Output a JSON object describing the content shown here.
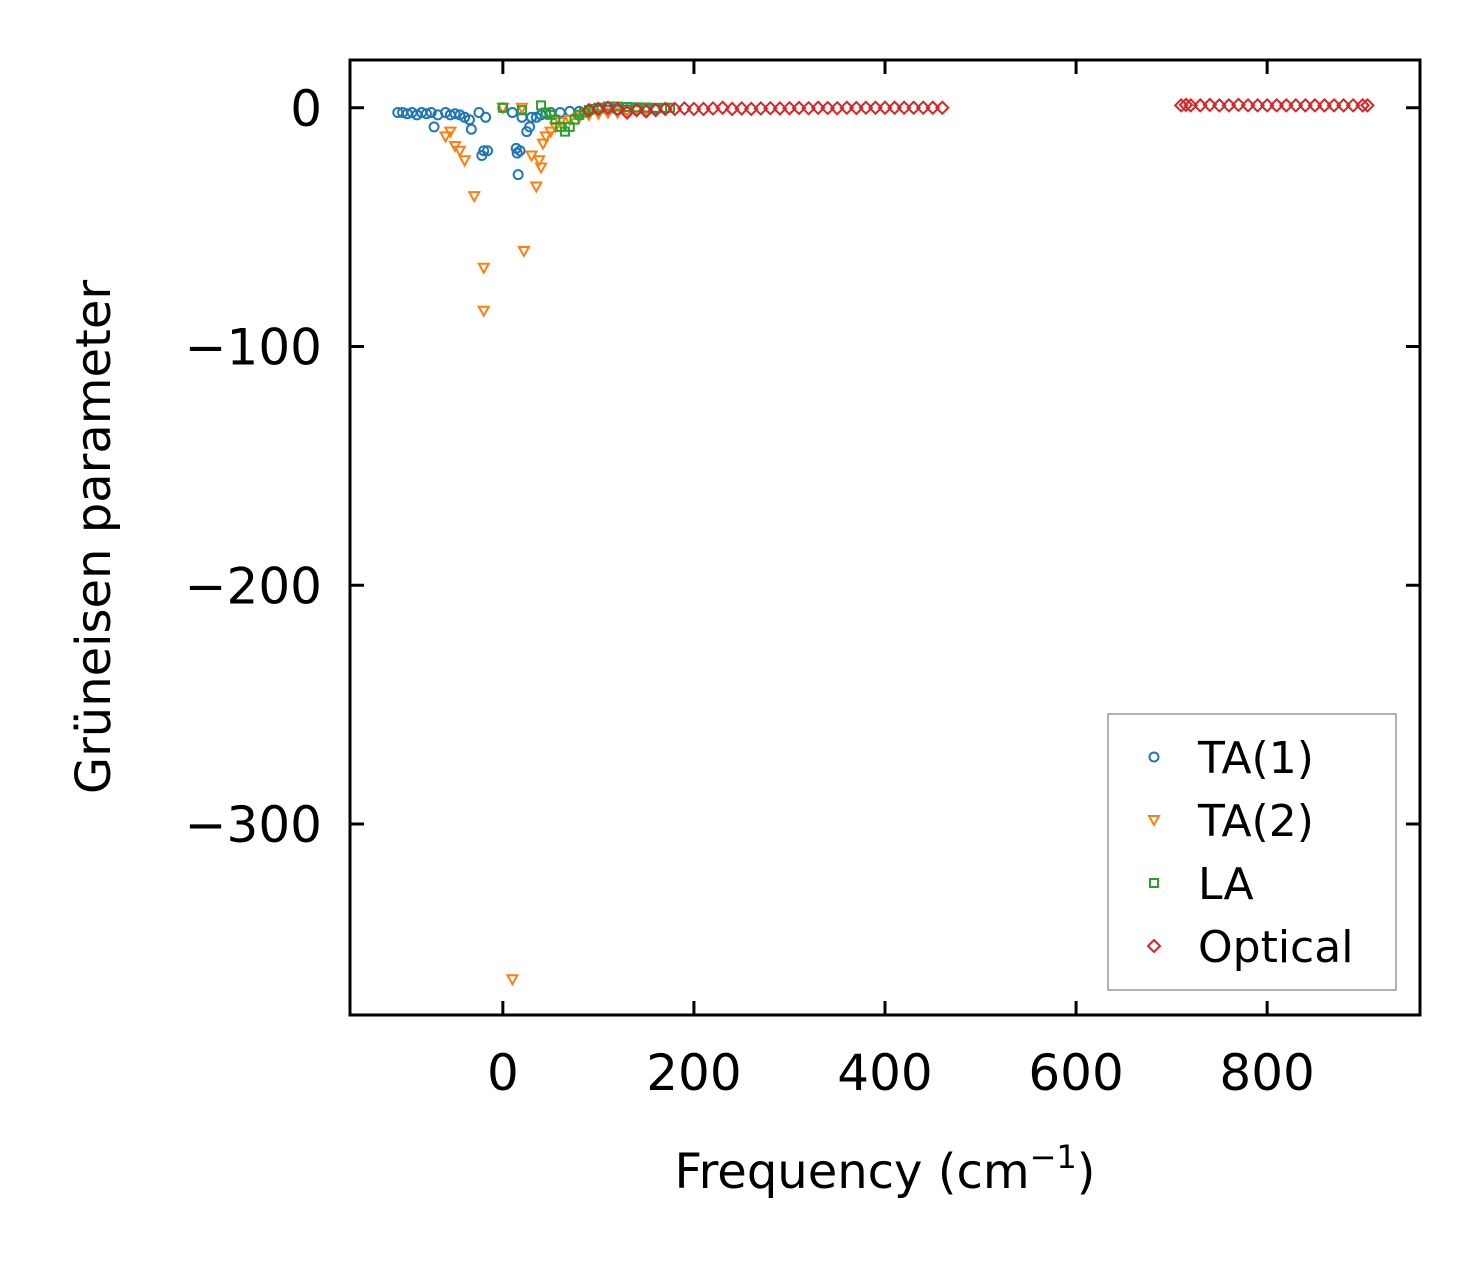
{
  "chart_data": {
    "type": "scatter",
    "title": "",
    "xlabel": "Frequency (cm",
    "xlabel_sup": "−1",
    "xlabel_close": ")",
    "ylabel": "Grüneisen parameter",
    "xlim": [
      -160,
      960
    ],
    "ylim": [
      -380,
      20
    ],
    "xticks": [
      0,
      200,
      400,
      600,
      800
    ],
    "yticks": [
      0,
      -100,
      -200,
      -300
    ],
    "xtick_labels": [
      "0",
      "200",
      "400",
      "600",
      "800"
    ],
    "ytick_labels": [
      "0",
      "−100",
      "−200",
      "−300"
    ],
    "tick_direction": "in",
    "grid": false,
    "legend_position": "lower-right",
    "series": [
      {
        "name": "TA(1)",
        "marker": "circle",
        "color": "#1f77b4",
        "points": [
          [
            -110,
            -2
          ],
          [
            -105,
            -2
          ],
          [
            -100,
            -2.5
          ],
          [
            -95,
            -2
          ],
          [
            -90,
            -3
          ],
          [
            -85,
            -2
          ],
          [
            -80,
            -2.5
          ],
          [
            -75,
            -2
          ],
          [
            -72,
            -8
          ],
          [
            -68,
            -3
          ],
          [
            -60,
            -2
          ],
          [
            -55,
            -3
          ],
          [
            -50,
            -2.5
          ],
          [
            -45,
            -3
          ],
          [
            -40,
            -4
          ],
          [
            -35,
            -5
          ],
          [
            -33,
            -9
          ],
          [
            -25,
            -2
          ],
          [
            -22,
            -20
          ],
          [
            -20,
            -18
          ],
          [
            -18,
            -4
          ],
          [
            -16,
            -18
          ],
          [
            0,
            0
          ],
          [
            10,
            -2
          ],
          [
            14,
            -17
          ],
          [
            15,
            -19
          ],
          [
            16,
            -28
          ],
          [
            18,
            -18
          ],
          [
            20,
            -4
          ],
          [
            25,
            -10
          ],
          [
            28,
            -8
          ],
          [
            30,
            -4
          ],
          [
            35,
            -4
          ],
          [
            40,
            -3
          ],
          [
            45,
            -2.5
          ],
          [
            50,
            -2
          ],
          [
            60,
            -2
          ],
          [
            70,
            -1.5
          ],
          [
            80,
            -1.5
          ],
          [
            90,
            -1
          ],
          [
            100,
            -1
          ],
          [
            110,
            -1
          ],
          [
            120,
            -1
          ],
          [
            130,
            -0.8
          ],
          [
            140,
            -0.6
          ],
          [
            150,
            -0.5
          ],
          [
            160,
            -0.4
          ],
          [
            170,
            -0.3
          ]
        ]
      },
      {
        "name": "TA(2)",
        "marker": "triangle-down",
        "color": "#ff7f0e",
        "points": [
          [
            -60,
            -12
          ],
          [
            -55,
            -10
          ],
          [
            -50,
            -16
          ],
          [
            -45,
            -18
          ],
          [
            -40,
            -22
          ],
          [
            -30,
            -37
          ],
          [
            -20,
            -67
          ],
          [
            -20,
            -85
          ],
          [
            0,
            0
          ],
          [
            10,
            -365
          ],
          [
            20,
            0
          ],
          [
            22,
            -60
          ],
          [
            30,
            -20
          ],
          [
            35,
            -33
          ],
          [
            38,
            -22
          ],
          [
            40,
            -25
          ],
          [
            42,
            -15
          ],
          [
            45,
            -12
          ],
          [
            50,
            -10
          ],
          [
            55,
            -8
          ],
          [
            60,
            -6
          ],
          [
            70,
            -5
          ],
          [
            80,
            -4
          ],
          [
            90,
            -3
          ],
          [
            100,
            -2.5
          ],
          [
            110,
            -2
          ],
          [
            120,
            -2
          ],
          [
            130,
            -1.5
          ],
          [
            140,
            -1
          ],
          [
            150,
            -1
          ]
        ]
      },
      {
        "name": "LA",
        "marker": "square",
        "color": "#2ca02c",
        "points": [
          [
            0,
            0
          ],
          [
            20,
            -1
          ],
          [
            40,
            1
          ],
          [
            45,
            -2
          ],
          [
            50,
            -3
          ],
          [
            55,
            -5
          ],
          [
            60,
            -8
          ],
          [
            65,
            -10
          ],
          [
            70,
            -8
          ],
          [
            75,
            -5
          ],
          [
            80,
            -3
          ],
          [
            85,
            -2
          ],
          [
            90,
            -1
          ],
          [
            95,
            -0.5
          ],
          [
            100,
            0
          ],
          [
            110,
            0.5
          ],
          [
            120,
            0.5
          ],
          [
            130,
            0.3
          ],
          [
            140,
            0.2
          ],
          [
            150,
            0.1
          ],
          [
            160,
            0
          ],
          [
            170,
            0
          ],
          [
            175,
            0
          ]
        ]
      },
      {
        "name": "Optical",
        "marker": "diamond",
        "color": "#d62728",
        "points": [
          [
            90,
            -1
          ],
          [
            100,
            -0.5
          ],
          [
            110,
            0
          ],
          [
            120,
            -0.5
          ],
          [
            130,
            -2
          ],
          [
            140,
            -1
          ],
          [
            150,
            -1.5
          ],
          [
            160,
            -1
          ],
          [
            170,
            -0.5
          ],
          [
            180,
            -0.5
          ],
          [
            190,
            -0.3
          ],
          [
            200,
            -0.5
          ],
          [
            210,
            -0.5
          ],
          [
            220,
            -0.3
          ],
          [
            230,
            0
          ],
          [
            240,
            -0.5
          ],
          [
            250,
            -0.3
          ],
          [
            260,
            -0.5
          ],
          [
            270,
            -0.3
          ],
          [
            280,
            -0.2
          ],
          [
            290,
            -0.3
          ],
          [
            300,
            -0.2
          ],
          [
            310,
            -0.1
          ],
          [
            320,
            -0.2
          ],
          [
            330,
            0
          ],
          [
            340,
            -0.1
          ],
          [
            350,
            -0.2
          ],
          [
            360,
            0
          ],
          [
            370,
            -0.1
          ],
          [
            380,
            0
          ],
          [
            390,
            0
          ],
          [
            400,
            0
          ],
          [
            410,
            0
          ],
          [
            420,
            0
          ],
          [
            430,
            0
          ],
          [
            440,
            0
          ],
          [
            450,
            0
          ],
          [
            460,
            0
          ],
          [
            710,
            1
          ],
          [
            715,
            1.2
          ],
          [
            720,
            1
          ],
          [
            730,
            1
          ],
          [
            740,
            1.2
          ],
          [
            750,
            1
          ],
          [
            760,
            1
          ],
          [
            770,
            1.2
          ],
          [
            780,
            1
          ],
          [
            790,
            1
          ],
          [
            800,
            1
          ],
          [
            810,
            1
          ],
          [
            820,
            1
          ],
          [
            830,
            1
          ],
          [
            840,
            1
          ],
          [
            850,
            1
          ],
          [
            860,
            1
          ],
          [
            870,
            1
          ],
          [
            880,
            1
          ],
          [
            890,
            1
          ],
          [
            900,
            1
          ],
          [
            905,
            1
          ]
        ]
      }
    ]
  }
}
